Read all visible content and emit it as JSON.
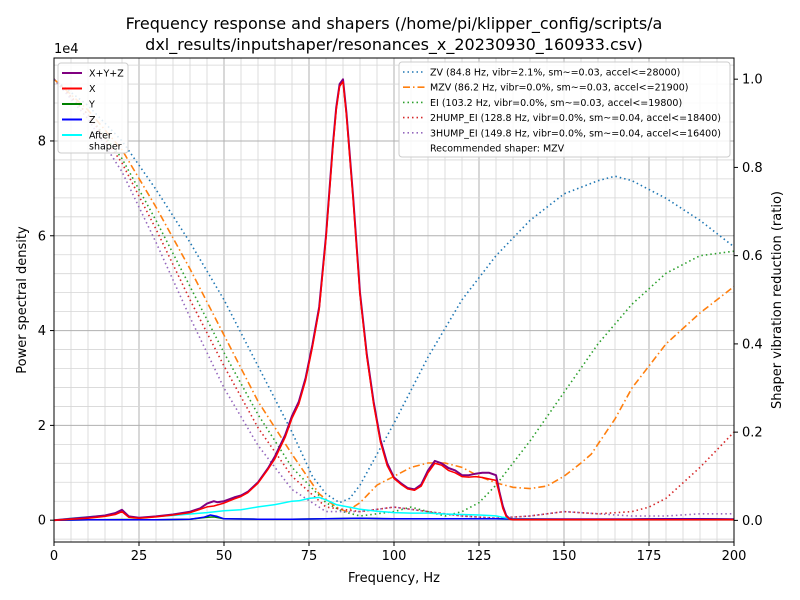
{
  "chart_data": {
    "type": "line",
    "title_line1": "Frequency response and shapers (/home/pi/klipper_config/scripts/a",
    "title_line2": "dxl_results/inputshaper/resonances_x_20230930_160933.csv)",
    "xlabel": "Frequency, Hz",
    "ylabel": "Power spectral density",
    "y2label": "Shaper vibration reduction (ratio)",
    "y_multiplier": "1e4",
    "xlim": [
      0,
      200
    ],
    "ylim": [
      -4.6,
      97.5
    ],
    "y2lim": [
      -0.049,
      1.048
    ],
    "x_ticks": [
      0,
      25,
      50,
      75,
      100,
      125,
      150,
      175,
      200
    ],
    "y_ticks": [
      0,
      20,
      40,
      60,
      80
    ],
    "y_tick_labels": [
      "0",
      "2",
      "4",
      "6",
      "8"
    ],
    "y2_ticks": [
      0.0,
      0.2,
      0.4,
      0.6,
      0.8,
      1.0
    ],
    "y2_tick_labels": [
      "0.0",
      "0.2",
      "0.4",
      "0.6",
      "0.8",
      "1.0"
    ],
    "grid": true,
    "legend_left": {
      "placement": "top-left",
      "entries": [
        {
          "label": "X+Y+Z",
          "color": "#800080",
          "style": "solid"
        },
        {
          "label": "X",
          "color": "#ff0000",
          "style": "solid"
        },
        {
          "label": "Y",
          "color": "#008000",
          "style": "solid"
        },
        {
          "label": "Z",
          "color": "#0000ff",
          "style": "solid"
        },
        {
          "label": "After\nshaper",
          "color": "#00ffff",
          "style": "solid"
        }
      ]
    },
    "legend_right": {
      "placement": "top-right",
      "entries": [
        {
          "label": "ZV (84.8 Hz, vibr=2.1%, sm~=0.03, accel<=28000)",
          "color": "#1f77b4",
          "style": "dotted"
        },
        {
          "label": "MZV (86.2 Hz, vibr=0.0%, sm~=0.03, accel<=21900)",
          "color": "#ff7f0e",
          "style": "dashdot"
        },
        {
          "label": "EI (103.2 Hz, vibr=0.0%, sm~=0.03, accel<=19800)",
          "color": "#2ca02c",
          "style": "dotted"
        },
        {
          "label": "2HUMP_EI (128.8 Hz, vibr=0.0%, sm~=0.04, accel<=18400)",
          "color": "#d62728",
          "style": "dotted"
        },
        {
          "label": "3HUMP_EI (149.8 Hz, vibr=0.0%, sm~=0.04, accel<=16400)",
          "color": "#9467bd",
          "style": "dotted"
        },
        {
          "label": "Recommended shaper: MZV",
          "color": "",
          "style": "none"
        }
      ]
    },
    "psd_series": [
      {
        "name": "X+Y+Z",
        "color": "#800080",
        "width": 2,
        "x": [
          0,
          5,
          10,
          15,
          18,
          20,
          22,
          25,
          30,
          35,
          40,
          43,
          45,
          47,
          48,
          50,
          53,
          55,
          57,
          60,
          63,
          65,
          68,
          70,
          72,
          74,
          76,
          78,
          80,
          82,
          83,
          84,
          85,
          86,
          88,
          90,
          92,
          94,
          96,
          98,
          100,
          102,
          104,
          106,
          108,
          110,
          112,
          114,
          116,
          118,
          120,
          122,
          124,
          126,
          128,
          130,
          131,
          132,
          133,
          134,
          135,
          140,
          150,
          160,
          170,
          180,
          190,
          200
        ],
        "y": [
          0,
          0.3,
          0.6,
          1,
          1.5,
          2.2,
          0.8,
          0.5,
          0.8,
          1.2,
          1.8,
          2.5,
          3.5,
          4,
          3.8,
          4,
          4.8,
          5.2,
          6,
          8,
          11,
          13.5,
          18,
          22,
          25,
          30,
          37,
          45,
          60,
          79,
          87,
          92,
          93,
          86,
          68,
          48,
          35,
          25,
          17,
          12,
          9,
          7.8,
          6.8,
          6.5,
          7.5,
          10.5,
          12.5,
          12,
          11,
          10.5,
          9.5,
          9.5,
          9.8,
          10,
          10,
          9.5,
          6,
          3,
          1,
          0.3,
          0.2,
          0.2,
          0.2,
          0.2,
          0.2,
          0.2,
          0.2,
          0.2
        ]
      },
      {
        "name": "X",
        "color": "#ff0000",
        "width": 1.5,
        "x": [
          0,
          5,
          10,
          15,
          18,
          20,
          22,
          25,
          30,
          35,
          40,
          43,
          45,
          47,
          48,
          50,
          53,
          55,
          57,
          60,
          63,
          65,
          68,
          70,
          72,
          74,
          76,
          78,
          80,
          82,
          83,
          84,
          85,
          86,
          88,
          90,
          92,
          94,
          96,
          98,
          100,
          102,
          104,
          106,
          108,
          110,
          112,
          114,
          116,
          118,
          120,
          122,
          124,
          126,
          128,
          130,
          131,
          132,
          133,
          134,
          135,
          140,
          150,
          160,
          170,
          180,
          190,
          200
        ],
        "y": [
          0,
          0.2,
          0.4,
          0.8,
          1.2,
          1.8,
          0.6,
          0.4,
          0.7,
          1.1,
          1.6,
          2.3,
          2.8,
          3,
          3.2,
          3.6,
          4.5,
          5,
          5.8,
          7.8,
          10.8,
          13,
          17.5,
          21.5,
          24.5,
          29.5,
          36.5,
          44.5,
          59.5,
          78.5,
          86.5,
          91.5,
          92.5,
          85.5,
          67.5,
          47.5,
          34.5,
          24.5,
          16.5,
          11.5,
          8.8,
          7.6,
          6.6,
          6.3,
          7.2,
          10,
          12,
          11.6,
          10.5,
          10,
          9.2,
          9.1,
          9.2,
          9,
          8.7,
          8.4,
          5.5,
          2.5,
          0.8,
          0.2,
          0.1,
          0.1,
          0.1,
          0.1,
          0.1,
          0.1,
          0.1,
          0.1
        ]
      },
      {
        "name": "Y",
        "color": "#008000",
        "width": 1.5,
        "x": [
          0,
          10,
          20,
          30,
          40,
          45,
          47,
          50,
          60,
          70,
          80,
          90,
          100,
          110,
          120,
          130,
          140,
          150,
          160,
          170,
          180,
          190,
          200
        ],
        "y": [
          0,
          0.1,
          0.15,
          0.1,
          0.2,
          0.6,
          0.7,
          0.3,
          0.2,
          0.2,
          0.3,
          0.4,
          0.3,
          0.3,
          0.3,
          0.3,
          0.2,
          0.2,
          0.2,
          0.2,
          0.3,
          0.3,
          0.2
        ]
      },
      {
        "name": "Z",
        "color": "#0000ff",
        "width": 1.5,
        "x": [
          0,
          10,
          20,
          30,
          40,
          44,
          46,
          48,
          50,
          60,
          70,
          80,
          90,
          100,
          110,
          120,
          130,
          140,
          150,
          160,
          170,
          180,
          190,
          200
        ],
        "y": [
          0,
          0.1,
          0.1,
          0.1,
          0.2,
          0.6,
          1.1,
          0.8,
          0.3,
          0.2,
          0.2,
          0.3,
          0.4,
          0.3,
          0.3,
          0.3,
          0.3,
          0.2,
          0.2,
          0.2,
          0.2,
          0.3,
          0.3,
          0.2
        ]
      },
      {
        "name": "After\nshaper",
        "color": "#00ffff",
        "width": 1.5,
        "x": [
          0,
          5,
          10,
          15,
          18,
          20,
          22,
          25,
          30,
          35,
          40,
          45,
          50,
          55,
          60,
          65,
          70,
          72,
          75,
          78,
          80,
          83,
          85,
          88,
          90,
          95,
          100,
          105,
          110,
          115,
          120,
          125,
          128,
          130,
          132,
          135,
          140,
          150,
          160,
          170,
          180,
          190,
          200
        ],
        "y": [
          0,
          0.4,
          0.7,
          1,
          1.5,
          2,
          0.8,
          0.4,
          0.8,
          1,
          1.3,
          1.6,
          2,
          2.2,
          2.8,
          3.3,
          4,
          4.1,
          4.6,
          4.8,
          4.3,
          3.3,
          3,
          2.6,
          2.3,
          1.9,
          1.6,
          1.5,
          1.5,
          1.3,
          1.2,
          1.1,
          1,
          0.9,
          0.6,
          0.3,
          0.3,
          0.2,
          0.2,
          0.2,
          0.2,
          0.2,
          0.2
        ]
      }
    ],
    "shaper_series": [
      {
        "name": "ZV",
        "color": "#1f77b4",
        "dash": "1.5,3",
        "x": [
          0,
          10,
          20,
          30,
          40,
          50,
          60,
          70,
          76,
          80,
          84,
          87,
          90,
          95,
          100,
          110,
          120,
          130,
          140,
          150,
          160,
          165,
          170,
          180,
          190,
          200
        ],
        "y": [
          1.0,
          0.94,
          0.86,
          0.75,
          0.63,
          0.5,
          0.35,
          0.2,
          0.1,
          0.06,
          0.04,
          0.05,
          0.08,
          0.15,
          0.22,
          0.37,
          0.5,
          0.6,
          0.68,
          0.74,
          0.77,
          0.78,
          0.77,
          0.73,
          0.68,
          0.62
        ]
      },
      {
        "name": "MZV",
        "color": "#ff7f0e",
        "dash": "7,3,1.5,3",
        "x": [
          0,
          10,
          20,
          30,
          40,
          50,
          60,
          70,
          78,
          83,
          86,
          90,
          95,
          100,
          105,
          110,
          115,
          120,
          125,
          130,
          135,
          140,
          145,
          150,
          155,
          158,
          165,
          170,
          180,
          190,
          200
        ],
        "y": [
          1.0,
          0.93,
          0.84,
          0.71,
          0.57,
          0.42,
          0.27,
          0.15,
          0.06,
          0.03,
          0.02,
          0.04,
          0.08,
          0.1,
          0.12,
          0.13,
          0.13,
          0.12,
          0.1,
          0.085,
          0.075,
          0.072,
          0.078,
          0.1,
          0.13,
          0.15,
          0.23,
          0.3,
          0.4,
          0.47,
          0.53
        ]
      },
      {
        "name": "EI",
        "color": "#2ca02c",
        "dash": "1.5,3",
        "x": [
          0,
          10,
          20,
          30,
          40,
          50,
          60,
          70,
          80,
          85,
          90,
          100,
          105,
          110,
          115,
          120,
          125,
          130,
          140,
          150,
          160,
          170,
          180,
          190,
          200
        ],
        "y": [
          1.0,
          0.92,
          0.82,
          0.68,
          0.53,
          0.38,
          0.24,
          0.12,
          0.04,
          0.02,
          0.01,
          0.02,
          0.03,
          0.02,
          0.01,
          0.02,
          0.04,
          0.08,
          0.18,
          0.29,
          0.4,
          0.49,
          0.56,
          0.6,
          0.61
        ]
      },
      {
        "name": "2HUMP_EI",
        "color": "#d62728",
        "dash": "1.5,3",
        "x": [
          0,
          10,
          20,
          30,
          40,
          50,
          60,
          70,
          80,
          90,
          100,
          110,
          120,
          130,
          140,
          150,
          160,
          170,
          175,
          180,
          190,
          200
        ],
        "y": [
          1.0,
          0.92,
          0.81,
          0.66,
          0.5,
          0.35,
          0.21,
          0.1,
          0.03,
          0.02,
          0.03,
          0.02,
          0.01,
          0.005,
          0.01,
          0.02,
          0.015,
          0.02,
          0.03,
          0.05,
          0.12,
          0.2
        ]
      },
      {
        "name": "3HUMP_EI",
        "color": "#9467bd",
        "dash": "1.5,3",
        "x": [
          0,
          10,
          20,
          30,
          40,
          50,
          60,
          70,
          80,
          90,
          100,
          110,
          120,
          130,
          140,
          150,
          160,
          170,
          180,
          190,
          200
        ],
        "y": [
          1.0,
          0.91,
          0.79,
          0.63,
          0.46,
          0.3,
          0.17,
          0.07,
          0.02,
          0.02,
          0.03,
          0.02,
          0.01,
          0.005,
          0.01,
          0.02,
          0.015,
          0.01,
          0.01,
          0.015,
          0.015
        ]
      }
    ]
  }
}
